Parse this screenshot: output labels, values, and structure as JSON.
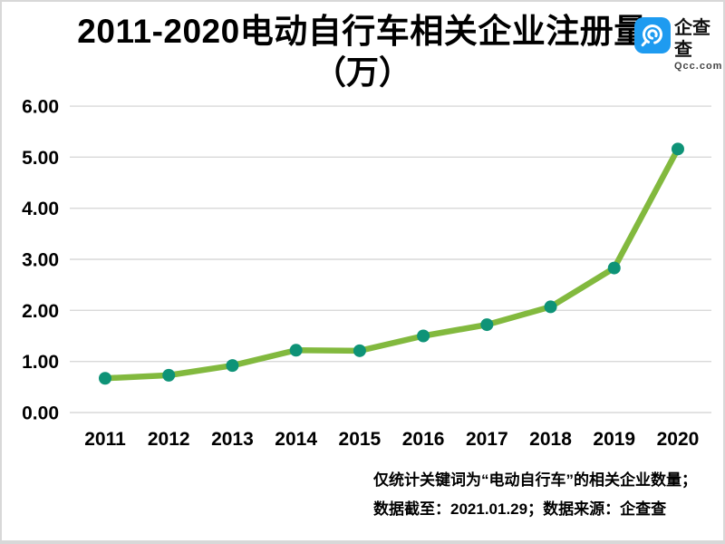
{
  "header": {
    "title_line1": "2011-2020电动自行车相关企业注册量",
    "title_line2": "（万）",
    "logo": {
      "name": "企查查",
      "domain": "Qcc.com",
      "brand_color": "#1e9bf0"
    }
  },
  "chart_data": {
    "type": "line",
    "title": "2011-2020电动自行车相关企业注册量（万）",
    "categories": [
      "2011",
      "2012",
      "2013",
      "2014",
      "2015",
      "2016",
      "2017",
      "2018",
      "2019",
      "2020"
    ],
    "values": [
      0.67,
      0.73,
      0.92,
      1.22,
      1.21,
      1.5,
      1.72,
      2.07,
      2.83,
      5.16
    ],
    "xlabel": "",
    "ylabel": "",
    "ylim": [
      0,
      6
    ],
    "y_ticks": [
      "0.00",
      "1.00",
      "2.00",
      "3.00",
      "4.00",
      "5.00",
      "6.00"
    ],
    "grid": true,
    "legend": "none",
    "line_color": "#82b93e",
    "point_color": "#0e9377",
    "grid_color": "#d9d9d9"
  },
  "footer": {
    "note_line1": "仅统计关键词为“电动自行车”的相关企业数量；",
    "note_line2": "数据截至：2021.01.29；数据来源：企查查"
  }
}
